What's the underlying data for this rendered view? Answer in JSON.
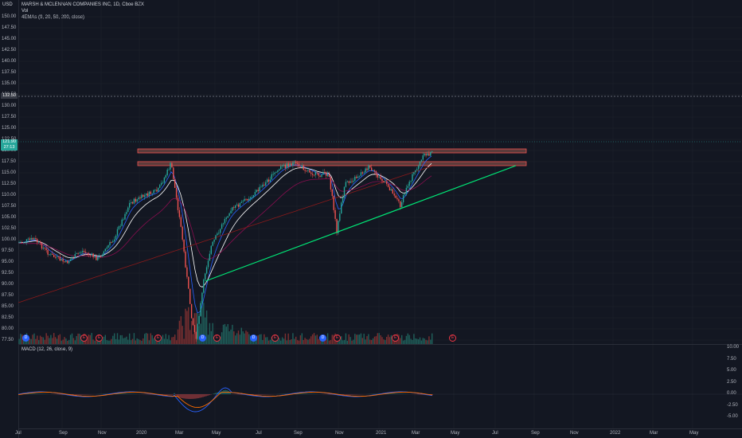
{
  "header": {
    "currency": "USD",
    "symbol_title": "MARSH & MCLENNAN COMPANIES INC, 1D, Cboe BZX",
    "vol_label": "Vol",
    "emas_label": "4EMAs (9, 20, 50, 200, close)",
    "macd_label": "MACD (12, 26, close, 9)"
  },
  "price_axis": [
    "150.00",
    "147.50",
    "145.00",
    "142.50",
    "140.00",
    "137.50",
    "135.00",
    "132.50",
    "130.00",
    "127.50",
    "125.00",
    "122.50",
    "120.00",
    "117.50",
    "115.00",
    "112.50",
    "110.00",
    "107.50",
    "105.00",
    "102.50",
    "100.00",
    "97.50",
    "95.00",
    "92.50",
    "90.00",
    "87.50",
    "85.00",
    "82.50",
    "80.00",
    "77.50"
  ],
  "price_tags": {
    "last": "121.90",
    "countdown": "27:13",
    "dashed_level": "132.50"
  },
  "macd_axis": [
    "10.00",
    "7.50",
    "5.00",
    "2.50",
    "0.00",
    "-2.50",
    "-5.00"
  ],
  "time_axis": [
    "Jul",
    "Sep",
    "Nov",
    "2020",
    "Mar",
    "May",
    "Jul",
    "Sep",
    "Nov",
    "2021",
    "Mar",
    "May",
    "Jul",
    "Sep",
    "Nov",
    "2022",
    "Mar",
    "May"
  ],
  "events": [
    {
      "kind": "D",
      "label": "D"
    },
    {
      "kind": "E",
      "label": "E"
    },
    {
      "kind": "E",
      "label": "E"
    },
    {
      "kind": "E",
      "label": "E"
    },
    {
      "kind": "D",
      "label": "D"
    },
    {
      "kind": "E",
      "label": "E"
    },
    {
      "kind": "D",
      "label": "D"
    },
    {
      "kind": "E",
      "label": "E"
    },
    {
      "kind": "D",
      "label": "D"
    },
    {
      "kind": "E",
      "label": "E"
    },
    {
      "kind": "E",
      "label": "E"
    },
    {
      "kind": "E",
      "label": "E"
    }
  ],
  "colors": {
    "up": "#26a69a",
    "down": "#ef5350",
    "trendline": "#00e676",
    "zone_fill": "#5d3b3b",
    "zone_border": "#ef5350",
    "bg": "#131722"
  }
}
